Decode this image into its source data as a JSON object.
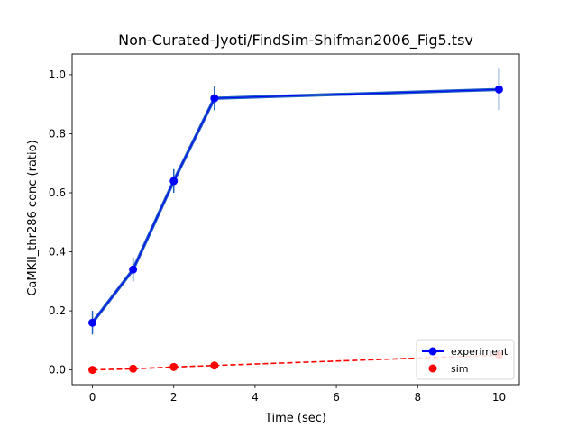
{
  "chart_data": {
    "type": "line",
    "title": "Non-Curated-Jyoti/FindSim-Shifman2006_Fig5.tsv",
    "xlabel": "Time (sec)",
    "ylabel": "CaMKII_thr286 conc (ratio)",
    "xlim": [
      -0.5,
      10.5
    ],
    "ylim": [
      -0.05,
      1.07
    ],
    "xticks": [
      0,
      2,
      4,
      6,
      8,
      10
    ],
    "yticks": [
      0.0,
      0.2,
      0.4,
      0.6,
      0.8,
      1.0
    ],
    "xtick_labels": [
      "0",
      "2",
      "4",
      "6",
      "8",
      "10"
    ],
    "ytick_labels": [
      "0.0",
      "0.2",
      "0.4",
      "0.6",
      "0.8",
      "1.0"
    ],
    "grid": false,
    "legend_position": "bottom-right",
    "series": [
      {
        "name": "experiment",
        "color": "#0000ff",
        "error_color": "#1f5fbf",
        "style": "line-marker",
        "x": [
          0,
          1,
          2,
          3,
          10
        ],
        "y": [
          0.16,
          0.34,
          0.64,
          0.92,
          0.95
        ],
        "yerr": [
          0.04,
          0.04,
          0.04,
          0.04,
          0.07
        ]
      },
      {
        "name": "sim",
        "color": "#ff0000",
        "style": "dashed-marker",
        "x": [
          0,
          1,
          2,
          3,
          10
        ],
        "y": [
          0.0,
          0.004,
          0.01,
          0.015,
          0.05
        ]
      }
    ]
  }
}
